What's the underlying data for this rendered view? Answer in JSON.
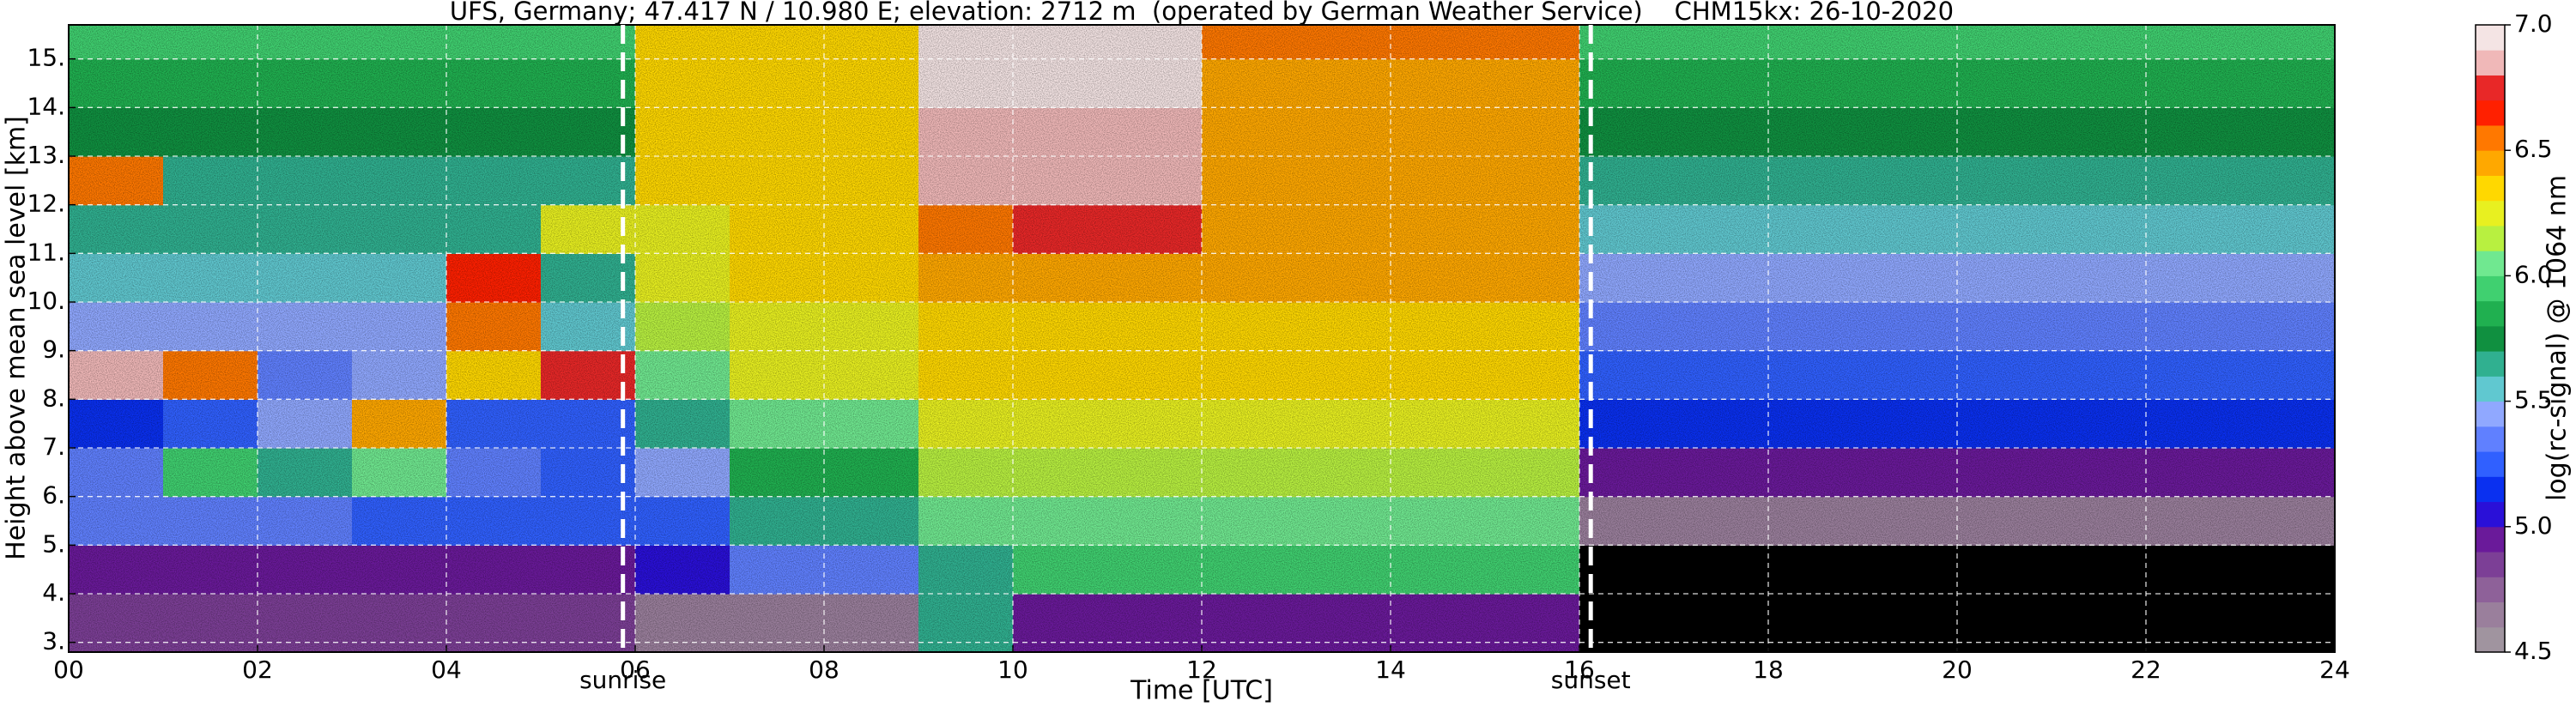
{
  "chart_data": {
    "type": "heatmap",
    "title": "UFS, Germany; 47.417 N / 10.980 E; elevation: 2712 m  (operated by German Weather Service)    CHM15kx: 26-10-2020",
    "x_label": "Time [UTC]",
    "y_label": "Height above mean sea level [km]",
    "colorbar_label": "log(rc-signal) @ 1064 nm",
    "xlim": [
      0,
      24
    ],
    "xticks": [
      {
        "value": 0,
        "label": "00"
      },
      {
        "value": 2,
        "label": "02"
      },
      {
        "value": 4,
        "label": "04"
      },
      {
        "value": 6,
        "label": "06"
      },
      {
        "value": 8,
        "label": "08"
      },
      10,
      12,
      14,
      16,
      18,
      20,
      22,
      24
    ],
    "ylim": [
      2.8,
      15.7
    ],
    "yticks": [
      {
        "value": 3,
        "label": "3."
      },
      {
        "value": 4,
        "label": "4."
      },
      {
        "value": 5,
        "label": "5."
      },
      {
        "value": 6,
        "label": "6."
      },
      {
        "value": 7,
        "label": "7."
      },
      {
        "value": 8,
        "label": "8."
      },
      {
        "value": 9,
        "label": "9."
      },
      {
        "value": 10,
        "label": "10."
      },
      {
        "value": 11,
        "label": "11."
      },
      {
        "value": 12,
        "label": "12."
      },
      {
        "value": 13,
        "label": "13."
      },
      {
        "value": 14,
        "label": "14."
      },
      {
        "value": 15,
        "label": "15."
      }
    ],
    "grid": true,
    "xbins": [
      0,
      1,
      2,
      3,
      4,
      5,
      6,
      7,
      8,
      9,
      10,
      11,
      12,
      13,
      14,
      15,
      16,
      17,
      18,
      19,
      20,
      21,
      22,
      23,
      24
    ],
    "ybins": [
      2.8,
      4,
      5,
      6,
      7,
      8,
      9,
      10,
      11,
      12,
      13,
      14,
      15,
      15.7
    ],
    "z": [
      [
        4.8,
        4.8,
        4.8,
        4.8,
        4.8,
        4.8,
        4.6,
        4.6,
        4.6,
        5.6,
        4.9,
        4.9,
        4.9,
        4.9,
        4.9,
        4.9,
        4.4,
        4.4,
        4.4,
        4.4,
        4.4,
        4.4,
        4.4,
        4.4
      ],
      [
        4.9,
        4.9,
        4.9,
        4.9,
        4.9,
        4.9,
        5.0,
        5.3,
        5.3,
        5.6,
        5.9,
        5.9,
        5.9,
        5.9,
        5.9,
        5.9,
        4.3,
        4.3,
        4.3,
        4.3,
        4.3,
        4.3,
        4.3,
        4.3
      ],
      [
        5.3,
        5.3,
        5.3,
        5.2,
        5.2,
        5.2,
        5.2,
        5.6,
        5.6,
        6.0,
        6.0,
        6.0,
        6.0,
        6.0,
        6.0,
        6.0,
        4.6,
        4.6,
        4.6,
        4.6,
        4.6,
        4.6,
        4.6,
        4.6
      ],
      [
        5.3,
        5.9,
        5.6,
        6.0,
        5.3,
        5.2,
        5.4,
        5.8,
        5.8,
        6.1,
        6.1,
        6.1,
        6.1,
        6.1,
        6.1,
        6.1,
        4.9,
        4.9,
        4.9,
        4.9,
        4.9,
        4.9,
        4.9,
        4.9
      ],
      [
        5.1,
        5.2,
        5.4,
        6.4,
        5.2,
        5.2,
        5.6,
        6.0,
        6.0,
        6.2,
        6.2,
        6.2,
        6.2,
        6.2,
        6.2,
        6.2,
        5.1,
        5.1,
        5.1,
        5.1,
        5.1,
        5.1,
        5.1,
        5.1
      ],
      [
        6.8,
        6.5,
        5.3,
        5.4,
        6.3,
        6.7,
        6.0,
        6.2,
        6.2,
        6.3,
        6.3,
        6.3,
        6.3,
        6.3,
        6.3,
        6.3,
        5.2,
        5.2,
        5.2,
        5.2,
        5.2,
        5.2,
        5.2,
        5.2
      ],
      [
        5.4,
        5.4,
        5.4,
        5.4,
        6.5,
        5.5,
        6.1,
        6.2,
        6.2,
        6.3,
        6.3,
        6.3,
        6.3,
        6.3,
        6.3,
        6.3,
        5.3,
        5.3,
        5.3,
        5.3,
        5.3,
        5.3,
        5.3,
        5.3
      ],
      [
        5.5,
        5.5,
        5.5,
        5.5,
        6.6,
        5.6,
        6.2,
        6.3,
        6.3,
        6.4,
        6.4,
        6.4,
        6.4,
        6.4,
        6.4,
        6.4,
        5.4,
        5.4,
        5.4,
        5.4,
        5.4,
        5.4,
        5.4,
        5.4
      ],
      [
        5.6,
        5.6,
        5.6,
        5.6,
        5.6,
        6.2,
        6.2,
        6.3,
        6.3,
        6.5,
        6.7,
        6.7,
        6.4,
        6.4,
        6.4,
        6.4,
        5.5,
        5.5,
        5.5,
        5.5,
        5.5,
        5.5,
        5.5,
        5.5
      ],
      [
        6.5,
        5.6,
        5.6,
        5.6,
        5.6,
        5.6,
        6.3,
        6.3,
        6.3,
        6.8,
        6.8,
        6.8,
        6.4,
        6.4,
        6.4,
        6.4,
        5.6,
        5.6,
        5.6,
        5.6,
        5.6,
        5.6,
        5.6,
        5.6
      ],
      [
        5.7,
        5.7,
        5.7,
        5.7,
        5.7,
        5.7,
        6.3,
        6.3,
        6.3,
        6.8,
        6.8,
        6.8,
        6.4,
        6.4,
        6.4,
        6.4,
        5.7,
        5.7,
        5.7,
        5.7,
        5.7,
        5.7,
        5.7,
        5.7
      ],
      [
        5.8,
        5.8,
        5.8,
        5.8,
        5.8,
        5.8,
        6.3,
        6.3,
        6.3,
        6.9,
        6.9,
        6.9,
        6.4,
        6.4,
        6.4,
        6.4,
        5.8,
        5.8,
        5.8,
        5.8,
        5.8,
        5.8,
        5.8,
        5.8
      ],
      [
        5.9,
        5.9,
        5.9,
        5.9,
        5.9,
        5.9,
        6.3,
        6.3,
        6.3,
        6.9,
        6.9,
        6.9,
        6.5,
        6.5,
        6.5,
        6.5,
        5.9,
        5.9,
        5.9,
        5.9,
        5.9,
        5.9,
        5.9,
        5.9
      ]
    ],
    "zlim": [
      4.5,
      7.0
    ],
    "zticks": [
      4.5,
      {
        "value": 5,
        "label": "5.0"
      },
      5.5,
      {
        "value": 6,
        "label": "6.0"
      },
      6.5,
      {
        "value": 7,
        "label": "7.0"
      }
    ],
    "colors": [
      "#a0949f",
      "#9a7f9c",
      "#8e6199",
      "#7c3f96",
      "#6a1a9a",
      "#2a10d8",
      "#0a30f0",
      "#3060ff",
      "#6080ff",
      "#90a8ff",
      "#60c8d0",
      "#30b090",
      "#109040",
      "#20b050",
      "#40d070",
      "#70e890",
      "#b8f040",
      "#e8f020",
      "#ffd800",
      "#ffa800",
      "#ff7800",
      "#ff2000",
      "#e82828",
      "#f0b8b8",
      "#f4e4e4"
    ],
    "under_color": "#000000",
    "annotations": [
      {
        "text": "sunrise",
        "x": 5.87
      },
      {
        "text": "sunset",
        "x": 16.12
      }
    ]
  }
}
